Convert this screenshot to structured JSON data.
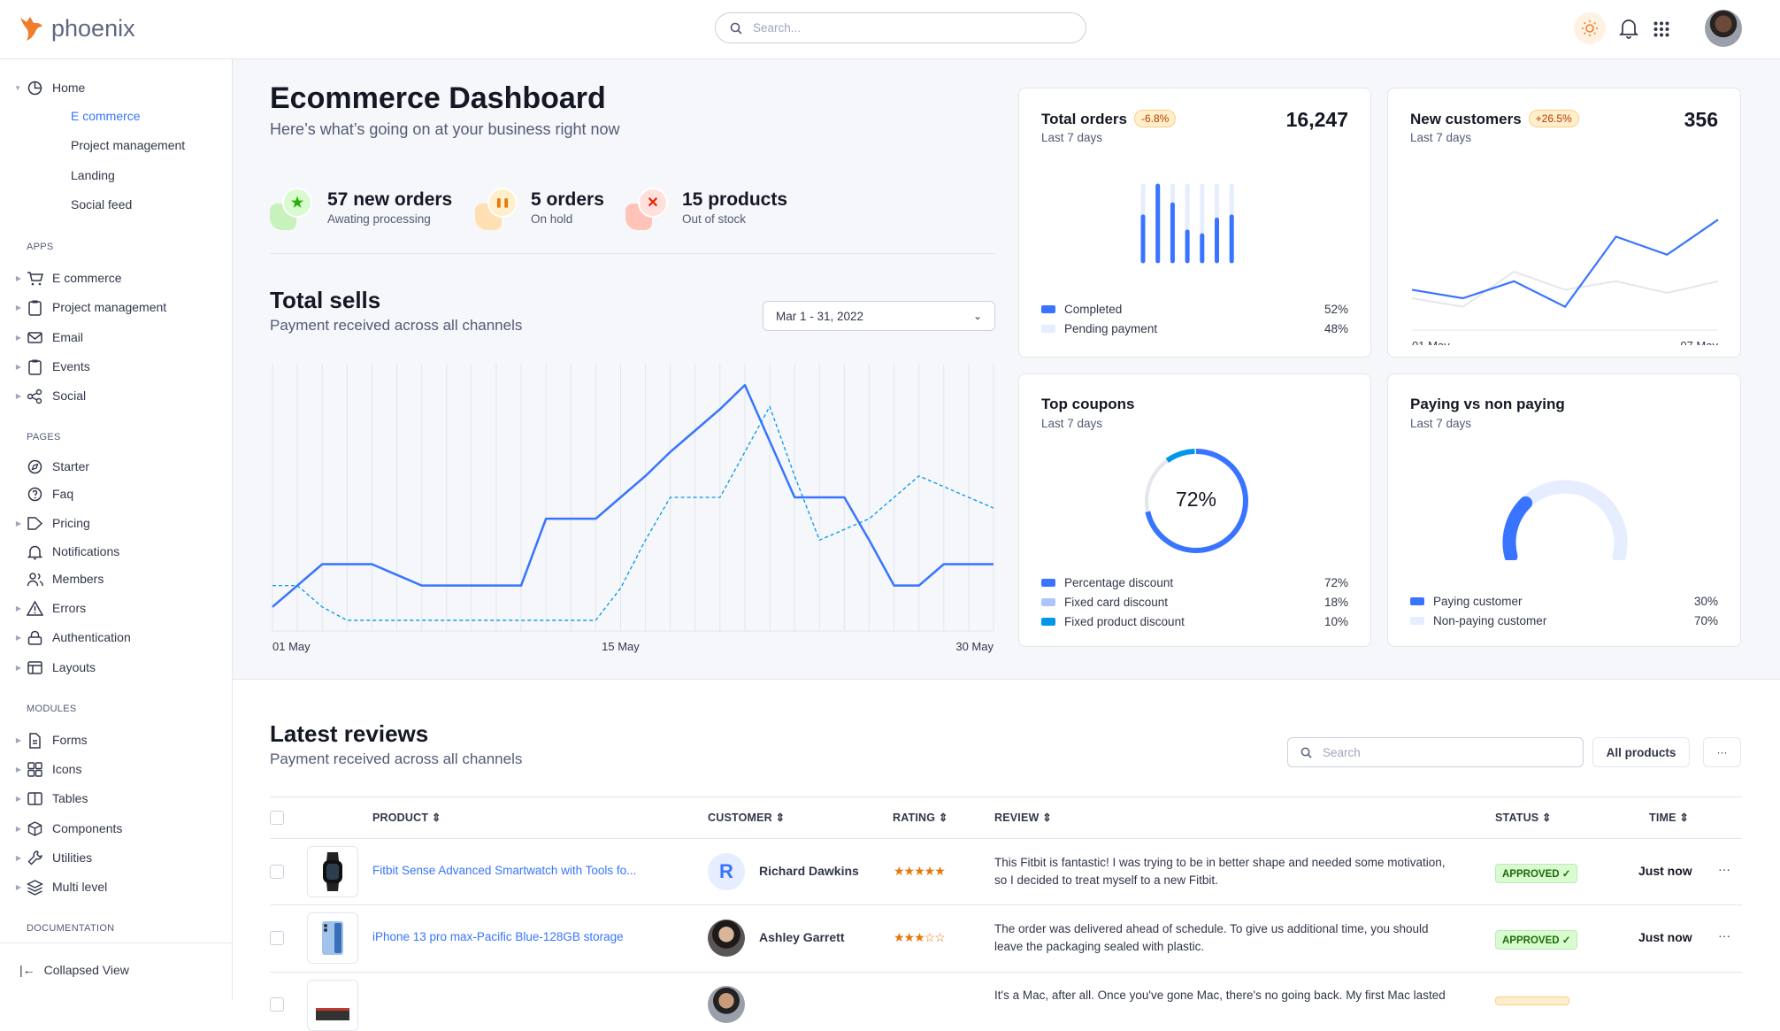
{
  "header": {
    "brand": "phoenix",
    "search_placeholder": "Search...",
    "icons": [
      "sun-icon",
      "bell-icon",
      "apps-grid-icon"
    ]
  },
  "sidebar": {
    "home": {
      "label": "Home",
      "children": [
        "E commerce",
        "Project management",
        "Landing",
        "Social feed"
      ],
      "active": "E commerce"
    },
    "sections": [
      {
        "label": "APPS",
        "items": [
          {
            "label": "E commerce",
            "icon": "cart-icon",
            "arrow": true
          },
          {
            "label": "Project management",
            "icon": "clipboard-icon",
            "arrow": true
          },
          {
            "label": "Email",
            "icon": "mail-icon",
            "arrow": true
          },
          {
            "label": "Events",
            "icon": "clipboard-icon",
            "arrow": true
          },
          {
            "label": "Social",
            "icon": "share-icon",
            "arrow": true
          }
        ]
      },
      {
        "label": "PAGES",
        "items": [
          {
            "label": "Starter",
            "icon": "compass-icon",
            "arrow": false
          },
          {
            "label": "Faq",
            "icon": "help-icon",
            "arrow": false
          },
          {
            "label": "Pricing",
            "icon": "tag-icon",
            "arrow": true
          },
          {
            "label": "Notifications",
            "icon": "bell-icon",
            "arrow": false
          },
          {
            "label": "Members",
            "icon": "users-icon",
            "arrow": false
          },
          {
            "label": "Errors",
            "icon": "alert-icon",
            "arrow": true
          },
          {
            "label": "Authentication",
            "icon": "lock-icon",
            "arrow": true
          },
          {
            "label": "Layouts",
            "icon": "layout-icon",
            "arrow": true
          }
        ]
      },
      {
        "label": "MODULES",
        "items": [
          {
            "label": "Forms",
            "icon": "file-icon",
            "arrow": true
          },
          {
            "label": "Icons",
            "icon": "grid-icon",
            "arrow": true
          },
          {
            "label": "Tables",
            "icon": "columns-icon",
            "arrow": true
          },
          {
            "label": "Components",
            "icon": "package-icon",
            "arrow": true
          },
          {
            "label": "Utilities",
            "icon": "tool-icon",
            "arrow": true
          },
          {
            "label": "Multi level",
            "icon": "layers-icon",
            "arrow": true
          }
        ]
      },
      {
        "label": "DOCUMENTATION",
        "items": []
      }
    ],
    "collapse_label": "Collapsed View"
  },
  "dashboard": {
    "title": "Ecommerce Dashboard",
    "subtitle": "Here’s what’s going on at your business right now",
    "stats": [
      {
        "title": "57 new orders",
        "sub": "Awating processing",
        "color": "#25b003",
        "icon": "star-icon"
      },
      {
        "title": "5 orders",
        "sub": "On hold",
        "color": "#e5780b",
        "icon": "pause-icon"
      },
      {
        "title": "15 products",
        "sub": "Out of stock",
        "color": "#ec1f00",
        "icon": "x-icon"
      }
    ]
  },
  "total_sells": {
    "title": "Total sells",
    "subtitle": "Payment received across all channels",
    "date_range": "Mar 1 - 31, 2022"
  },
  "chart_data": [
    {
      "type": "line",
      "title": "Total sells",
      "x_ticks": [
        "01 May",
        "15 May",
        "30 May"
      ],
      "x": [
        "01 May",
        "02 May",
        "03 May",
        "04 May",
        "05 May",
        "06 May",
        "07 May",
        "08 May",
        "09 May",
        "10 May",
        "11 May",
        "12 May",
        "13 May",
        "14 May",
        "15 May",
        "16 May",
        "17 May",
        "18 May",
        "19 May",
        "20 May",
        "21 May",
        "22 May",
        "23 May",
        "24 May",
        "25 May",
        "26 May",
        "27 May",
        "28 May",
        "29 May",
        "30 May"
      ],
      "ylim": [
        0,
        100
      ],
      "grid": "vertical",
      "series": [
        {
          "style": "solid",
          "color": "#3874ff",
          "values": [
            9,
            17,
            25,
            25,
            25,
            21,
            17,
            17,
            17,
            17,
            17,
            42,
            42,
            42,
            50,
            58,
            67,
            75,
            83,
            92,
            71,
            50,
            50,
            50,
            34,
            17,
            17,
            25,
            25,
            25
          ]
        },
        {
          "style": "dashed",
          "color": "#0097eb",
          "values": [
            17,
            17,
            9,
            4,
            4,
            4,
            4,
            4,
            4,
            4,
            4,
            4,
            4,
            4,
            16,
            34,
            50,
            50,
            50,
            67,
            84,
            58,
            34,
            38,
            42,
            50,
            58,
            54,
            50,
            46
          ]
        }
      ]
    },
    {
      "type": "bar",
      "title": "Total orders",
      "subtitle": "Last 7 days",
      "badge": "-6.8%",
      "value": "16,247",
      "series": [
        {
          "name": "Completed",
          "color": "#3874ff",
          "values": [
            59,
            100,
            75,
            39,
            34,
            55,
            59
          ]
        },
        {
          "name": "Pending payment",
          "color": "#e5edff",
          "values": [
            41,
            0,
            25,
            61,
            66,
            45,
            41
          ]
        }
      ],
      "legend": [
        {
          "label": "Completed",
          "value": "52%",
          "color": "#3874ff"
        },
        {
          "label": "Pending payment",
          "value": "48%",
          "color": "#e5edff"
        }
      ]
    },
    {
      "type": "line",
      "title": "New customers",
      "subtitle": "Last 7 days",
      "badge": "+26.5%",
      "value": "356",
      "x_ticks": [
        "01 May",
        "07 May"
      ],
      "series": [
        {
          "color": "#3874ff",
          "values": [
            33,
            25,
            41,
            17,
            83,
            66,
            99
          ]
        },
        {
          "color": "#e3e6ed",
          "values": [
            25,
            17,
            50,
            33,
            41,
            30,
            41
          ]
        }
      ]
    },
    {
      "type": "pie",
      "title": "Top coupons",
      "subtitle": "Last 7 days",
      "center_label": "72%",
      "slices": [
        {
          "label": "Percentage discount",
          "value": 72,
          "display": "72%",
          "color": "#3874ff"
        },
        {
          "label": "Fixed card discount",
          "value": 18,
          "display": "18%",
          "color": "#adc5ff"
        },
        {
          "label": "Fixed product discount",
          "value": 10,
          "display": "10%",
          "color": "#0097eb"
        }
      ]
    },
    {
      "type": "pie",
      "title": "Paying vs non paying",
      "subtitle": "Last 7 days",
      "slices": [
        {
          "label": "Paying customer",
          "value": 30,
          "display": "30%",
          "color": "#3874ff"
        },
        {
          "label": "Non-paying customer",
          "value": 70,
          "display": "70%",
          "color": "#e5edff"
        }
      ]
    }
  ],
  "reviews": {
    "title": "Latest reviews",
    "subtitle": "Payment received across all channels",
    "search_placeholder": "Search",
    "filter_label": "All products",
    "more_label": "···",
    "columns": [
      "PRODUCT",
      "CUSTOMER",
      "RATING",
      "REVIEW",
      "STATUS",
      "TIME"
    ],
    "rows": [
      {
        "product": "Fitbit Sense Advanced Smartwatch with Tools fo...",
        "customer": "Richard Dawkins",
        "avatar_letter": "R",
        "rating": 5,
        "stars": "★★★★★",
        "review": "This Fitbit is fantastic! I was trying to be in better shape and needed some motivation, so I decided to treat myself to a new Fitbit.",
        "status": "APPROVED ✓",
        "time": "Just now"
      },
      {
        "product": "iPhone 13 pro max-Pacific Blue-128GB storage",
        "customer": "Ashley Garrett",
        "rating": 3,
        "stars": "★★★☆☆",
        "review": "The order was delivered ahead of schedule. To give us additional time, you should leave the packaging sealed with plastic.",
        "status": "APPROVED ✓",
        "time": "Just now"
      },
      {
        "review": "It's a Mac, after all. Once you've gone Mac, there's no going back. My first Mac lasted"
      }
    ]
  }
}
